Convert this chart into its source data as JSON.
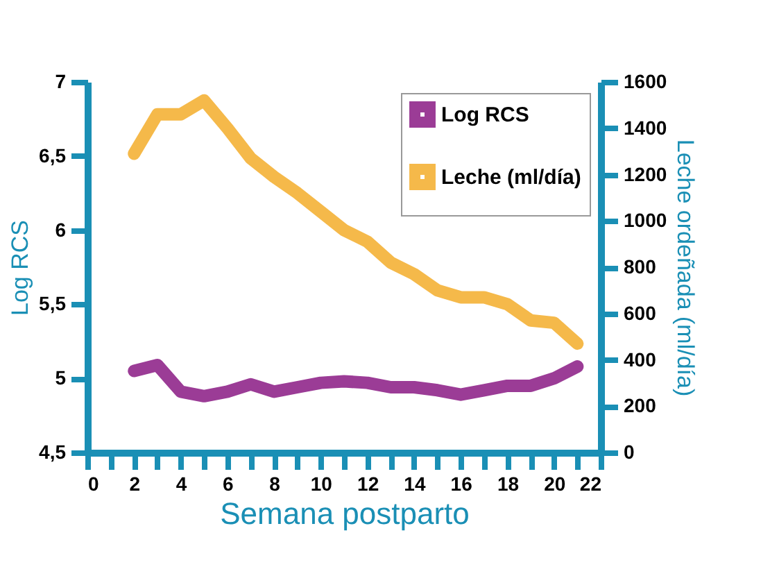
{
  "chart_data": {
    "type": "line",
    "xlabel": "Semana postparto",
    "ylabel": "Log RCS",
    "y2label": "Leche ordeñada (ml/día)",
    "x": [
      2,
      3,
      4,
      5,
      6,
      7,
      8,
      9,
      10,
      11,
      12,
      13,
      14,
      15,
      16,
      17,
      18,
      19,
      20,
      21
    ],
    "series": [
      {
        "name": "Log RCS",
        "color": "#9b3c96",
        "axis": "y",
        "values": [
          5.05,
          5.09,
          4.91,
          4.88,
          4.91,
          4.96,
          4.91,
          4.94,
          4.97,
          4.98,
          4.97,
          4.94,
          4.94,
          4.92,
          4.89,
          4.92,
          4.95,
          4.95,
          5.0,
          5.08
        ]
      },
      {
        "name": "Leche (ml/día)",
        "color": "#f5b94a",
        "axis": "y2",
        "values": [
          1290,
          1460,
          1460,
          1520,
          1400,
          1270,
          1190,
          1120,
          1040,
          960,
          910,
          820,
          770,
          700,
          670,
          670,
          640,
          570,
          560,
          470
        ]
      }
    ],
    "xlim": [
      0,
      22
    ],
    "xticks": [
      0,
      {
        "value": 1,
        "label": null
      },
      2,
      {
        "value": 3,
        "label": null
      },
      4,
      {
        "value": 5,
        "label": null
      },
      6,
      {
        "value": 7,
        "label": null
      },
      8,
      {
        "value": 9,
        "label": null
      },
      10,
      {
        "value": 11,
        "label": null
      },
      12,
      {
        "value": 13,
        "label": null
      },
      14,
      {
        "value": 15,
        "label": null
      },
      16,
      {
        "value": 17,
        "label": null
      },
      18,
      {
        "value": 19,
        "label": null
      },
      20,
      {
        "value": 21,
        "label": null
      },
      22
    ],
    "ylim": [
      4.5,
      7
    ],
    "yticks": [
      {
        "value": 4.5,
        "label": "4,5"
      },
      5,
      {
        "value": 5.5,
        "label": "5,5"
      },
      6,
      {
        "value": 6.5,
        "label": "6,5"
      },
      7
    ],
    "y2lim": [
      0,
      1600
    ],
    "y2ticks": [
      0,
      200,
      400,
      600,
      800,
      1000,
      1200,
      1400,
      1600
    ],
    "grid": false,
    "legend": "top right",
    "marker": "none",
    "line_style": "solid"
  }
}
